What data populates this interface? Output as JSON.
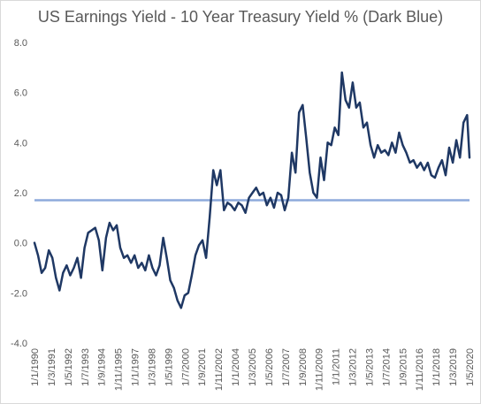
{
  "chart_data": {
    "type": "line",
    "title": "US Earnings Yield - 10 Year Treasury Yield % (Dark Blue)",
    "xlabel": "",
    "ylabel": "",
    "ylim": [
      -4.0,
      8.0
    ],
    "yticks": [
      "8.0",
      "6.0",
      "4.0",
      "2.0",
      "0.0",
      "-2.0",
      "-4.0"
    ],
    "xtick_labels": [
      "1/1/1990",
      "1/3/1991",
      "1/5/1992",
      "1/7/1993",
      "1/9/1994",
      "1/11/1995",
      "1/1/1997",
      "1/3/1998",
      "1/5/1999",
      "1/7/2000",
      "1/9/2001",
      "1/11/2002",
      "1/1/2004",
      "1/3/2005",
      "1/5/2006",
      "1/7/2007",
      "1/9/2008",
      "1/11/2009",
      "1/1/2011",
      "1/3/2012",
      "1/5/2013",
      "1/7/2014",
      "1/9/2015",
      "1/11/2016",
      "1/1/2018",
      "1/3/2019",
      "1/5/2020"
    ],
    "grid": false,
    "legend": "none",
    "reference_line": {
      "value": 1.7,
      "color": "#8eaadb"
    },
    "series_color": "#1f3864",
    "x": [
      1990.0,
      1990.25,
      1990.5,
      1990.75,
      1991.0,
      1991.25,
      1991.5,
      1991.75,
      1992.0,
      1992.25,
      1992.5,
      1992.75,
      1993.0,
      1993.25,
      1993.5,
      1993.75,
      1994.0,
      1994.25,
      1994.5,
      1994.75,
      1995.0,
      1995.25,
      1995.5,
      1995.75,
      1996.0,
      1996.25,
      1996.5,
      1996.75,
      1997.0,
      1997.25,
      1997.5,
      1997.75,
      1998.0,
      1998.25,
      1998.5,
      1998.75,
      1999.0,
      1999.25,
      1999.5,
      1999.75,
      2000.0,
      2000.25,
      2000.5,
      2000.75,
      2001.0,
      2001.25,
      2001.5,
      2001.75,
      2002.0,
      2002.25,
      2002.5,
      2002.75,
      2003.0,
      2003.25,
      2003.5,
      2003.75,
      2004.0,
      2004.25,
      2004.5,
      2004.75,
      2005.0,
      2005.25,
      2005.5,
      2005.75,
      2006.0,
      2006.25,
      2006.5,
      2006.75,
      2007.0,
      2007.25,
      2007.5,
      2007.75,
      2008.0,
      2008.25,
      2008.5,
      2008.75,
      2009.0,
      2009.25,
      2009.5,
      2009.75,
      2010.0,
      2010.25,
      2010.5,
      2010.75,
      2011.0,
      2011.25,
      2011.5,
      2011.75,
      2012.0,
      2012.25,
      2012.5,
      2012.75,
      2013.0,
      2013.25,
      2013.5,
      2013.75,
      2014.0,
      2014.25,
      2014.5,
      2014.75,
      2015.0,
      2015.25,
      2015.5,
      2015.75,
      2016.0,
      2016.25,
      2016.5,
      2016.75,
      2017.0,
      2017.25,
      2017.5,
      2017.75,
      2018.0,
      2018.25,
      2018.5,
      2018.75,
      2019.0,
      2019.25,
      2019.5,
      2019.75,
      2020.0,
      2020.25,
      2020.42
    ],
    "values": [
      0.0,
      -0.5,
      -1.2,
      -1.0,
      -0.3,
      -0.6,
      -1.4,
      -1.9,
      -1.2,
      -0.9,
      -1.3,
      -1.0,
      -0.6,
      -1.4,
      -0.2,
      0.4,
      0.5,
      0.6,
      0.1,
      -1.1,
      0.2,
      0.8,
      0.5,
      0.7,
      -0.2,
      -0.6,
      -0.5,
      -0.8,
      -0.5,
      -1.0,
      -0.8,
      -1.1,
      -0.5,
      -1.0,
      -1.3,
      -0.9,
      0.2,
      -0.6,
      -1.5,
      -1.8,
      -2.3,
      -2.6,
      -2.1,
      -2.0,
      -1.3,
      -0.5,
      -0.1,
      0.1,
      -0.6,
      1.0,
      2.9,
      2.3,
      2.9,
      1.3,
      1.6,
      1.5,
      1.3,
      1.6,
      1.5,
      1.2,
      1.8,
      2.0,
      2.2,
      1.9,
      2.0,
      1.5,
      1.8,
      1.4,
      2.0,
      1.9,
      1.3,
      1.8,
      3.6,
      2.8,
      5.2,
      5.5,
      4.2,
      2.8,
      2.0,
      1.8,
      3.4,
      2.5,
      4.0,
      3.9,
      4.6,
      4.3,
      6.8,
      5.7,
      5.4,
      6.4,
      5.4,
      5.6,
      4.6,
      4.8,
      3.9,
      3.4,
      3.9,
      3.6,
      3.7,
      3.5,
      4.0,
      3.6,
      4.4,
      3.9,
      3.6,
      3.2,
      3.3,
      3.0,
      3.2,
      2.9,
      3.2,
      2.7,
      2.6,
      3.0,
      3.3,
      2.7,
      3.8,
      3.2,
      4.1,
      3.4,
      4.8,
      5.1,
      3.4
    ]
  }
}
